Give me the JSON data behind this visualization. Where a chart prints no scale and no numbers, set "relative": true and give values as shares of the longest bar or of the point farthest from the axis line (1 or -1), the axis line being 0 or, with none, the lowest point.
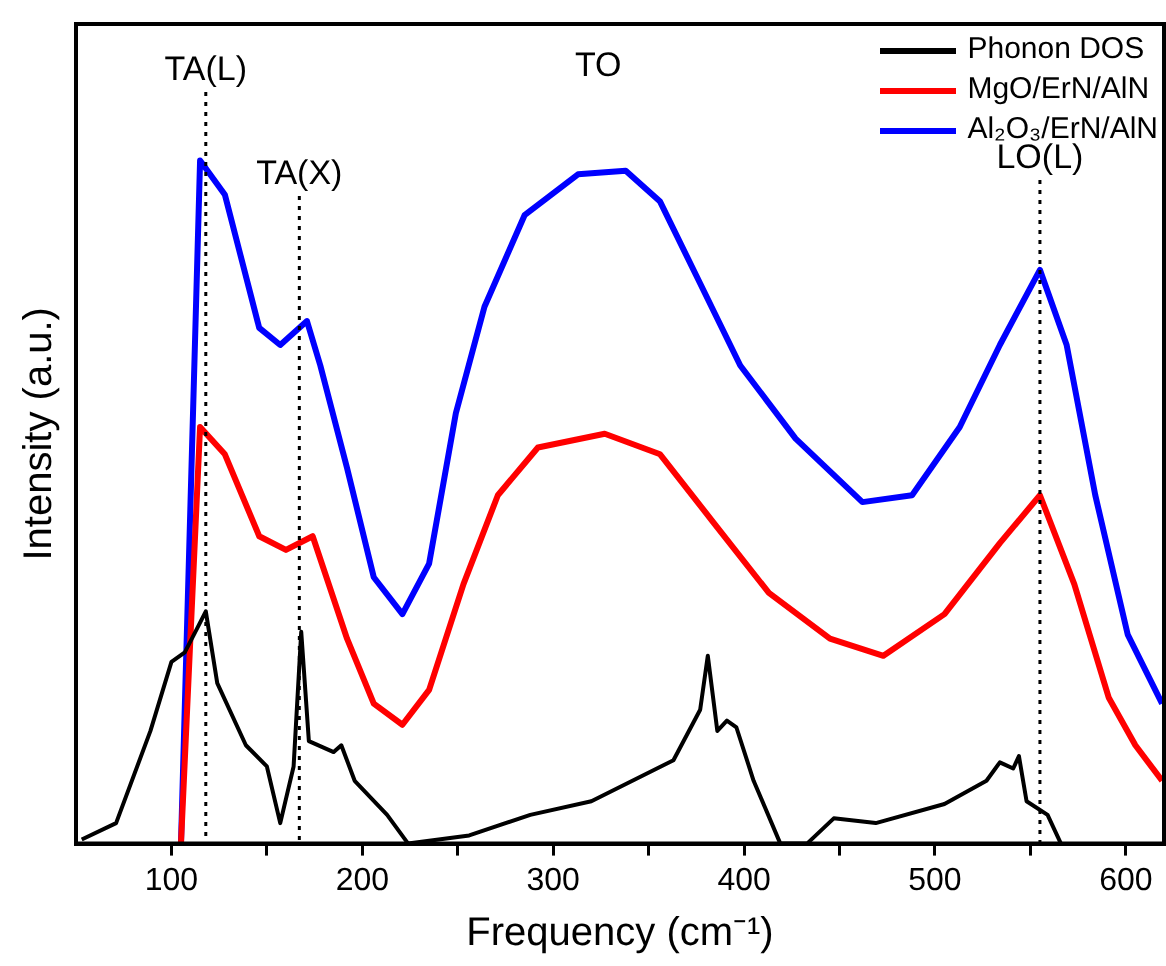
{
  "chart_data": {
    "type": "line",
    "relative": true,
    "xlabel": "Frequency (cm⁻¹)",
    "ylabel": "Intensity (a.u.)",
    "xlim": [
      50,
      620
    ],
    "xticks": [
      100,
      200,
      300,
      400,
      500,
      600,
      {
        "value": 150,
        "label": null
      },
      {
        "value": 250,
        "label": null
      },
      {
        "value": 350,
        "label": null
      },
      {
        "value": 450,
        "label": null
      },
      {
        "value": 550,
        "label": null
      }
    ],
    "tick_labels": "x",
    "grid": false,
    "legend": "top right",
    "marker": "none",
    "line_style": "solid",
    "series": [
      {
        "name": "Phonon DOS",
        "color": "#000000",
        "x": [
          53,
          71,
          89,
          100,
          107,
          114,
          118,
          124,
          139,
          150,
          157,
          164,
          168,
          172,
          185,
          189,
          196,
          213,
          224,
          256,
          288,
          320,
          363,
          377,
          381,
          386,
          391,
          396,
          405,
          419,
          433,
          447,
          469,
          505,
          527,
          534,
          541,
          544,
          548,
          559,
          566
        ],
        "values": [
          0.006,
          0.03,
          0.165,
          0.266,
          0.28,
          0.318,
          0.34,
          0.235,
          0.144,
          0.113,
          0.03,
          0.113,
          0.31,
          0.15,
          0.134,
          0.144,
          0.092,
          0.042,
          0,
          0.012,
          0.042,
          0.062,
          0.122,
          0.196,
          0.275,
          0.165,
          0.18,
          0.17,
          0.092,
          0,
          0,
          0.037,
          0.03,
          0.058,
          0.092,
          0.119,
          0.11,
          0.128,
          0.062,
          0.042,
          0
        ]
      },
      {
        "name": "MgO/ErN/AlN",
        "color": "#ff0000",
        "x": [
          105,
          115,
          128,
          146,
          160,
          174,
          192,
          206,
          221,
          235,
          253,
          271,
          292,
          327,
          356,
          384,
          413,
          445,
          473,
          505,
          534,
          555,
          573,
          591,
          605,
          619
        ],
        "values": [
          0,
          0.61,
          0.57,
          0.45,
          0.43,
          0.45,
          0.3,
          0.205,
          0.174,
          0.225,
          0.38,
          0.51,
          0.58,
          0.6,
          0.57,
          0.47,
          0.367,
          0.3,
          0.275,
          0.336,
          0.44,
          0.51,
          0.38,
          0.214,
          0.144,
          0.092
        ]
      },
      {
        "name": "Al₂O₃/ErN/AlN",
        "color": "#0000ff",
        "x": [
          105,
          115,
          128,
          146,
          157,
          171,
          178,
          192,
          206,
          221,
          235,
          249,
          264,
          285,
          313,
          338,
          356,
          377,
          398,
          427,
          462,
          488,
          513,
          534,
          555,
          569,
          584,
          601,
          619
        ],
        "values": [
          0,
          1,
          0.95,
          0.755,
          0.73,
          0.765,
          0.7,
          0.55,
          0.39,
          0.336,
          0.41,
          0.63,
          0.786,
          0.92,
          0.98,
          0.985,
          0.94,
          0.82,
          0.7,
          0.593,
          0.5,
          0.51,
          0.61,
          0.73,
          0.84,
          0.73,
          0.51,
          0.306,
          0.205
        ]
      }
    ],
    "ref_lines": [
      {
        "axis": "x",
        "value": 118,
        "label": "TA(L)",
        "color": "#000000",
        "line_style": "dotted"
      },
      {
        "axis": "x",
        "value": 167,
        "label": "TA(X)",
        "color": "#000000",
        "line_style": "dotted"
      },
      {
        "axis": "x",
        "value": 555,
        "label": "LO(L)",
        "color": "#000000",
        "line_style": "dotted"
      }
    ],
    "annotations": [
      "TO"
    ]
  }
}
